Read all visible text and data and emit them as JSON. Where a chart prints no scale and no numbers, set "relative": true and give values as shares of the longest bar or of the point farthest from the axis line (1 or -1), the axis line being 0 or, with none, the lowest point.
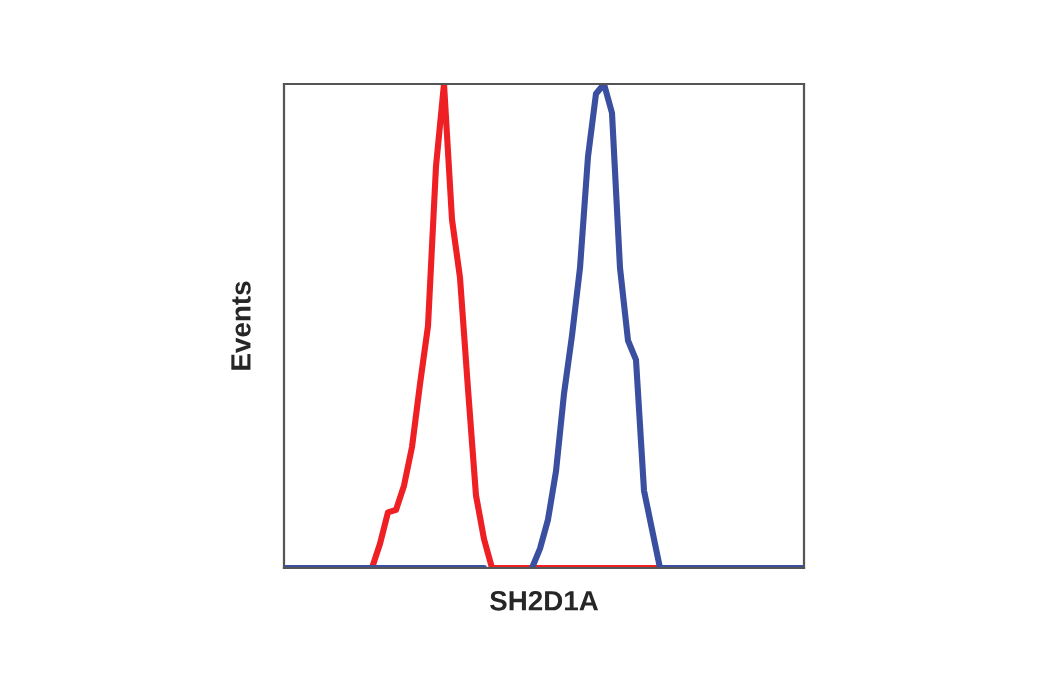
{
  "chart_data": {
    "type": "line",
    "relative": true,
    "xlabel": "SH2D1A",
    "ylabel": "Events",
    "legend": false,
    "marker": "none",
    "line_style": "solid",
    "categories": [
      null,
      null,
      null,
      null,
      null,
      null,
      null,
      null,
      null,
      null,
      null,
      null,
      null,
      null,
      null,
      null,
      null,
      null,
      null,
      null,
      null,
      null,
      null,
      null,
      null,
      null,
      null,
      null,
      null,
      null,
      null,
      null,
      null,
      null,
      null,
      null,
      null,
      null,
      null,
      null,
      null,
      null,
      null,
      null,
      null,
      null,
      null,
      null,
      null,
      null,
      null,
      null,
      null,
      null,
      null,
      null,
      null,
      null,
      null,
      null,
      null,
      null,
      null,
      null,
      null,
      null
    ],
    "series": [
      {
        "color": "#ee2024",
        "values": [
          null,
          null,
          null,
          null,
          null,
          null,
          null,
          null,
          null,
          null,
          null,
          0,
          0.05,
          0.115,
          0.12,
          0.17,
          0.25,
          0.38,
          0.5,
          0.83,
          1.0,
          0.72,
          0.6,
          0.37,
          0.15,
          0.06,
          0,
          0,
          0,
          0,
          0,
          0,
          0,
          0,
          0,
          0,
          0,
          0,
          0,
          0,
          0,
          0,
          0,
          0,
          0,
          0,
          0,
          0,
          null,
          null,
          null,
          null,
          null,
          null,
          null,
          null,
          null,
          null,
          null,
          null,
          null,
          null,
          null,
          null,
          null,
          null
        ]
      },
      {
        "color": "#3a4fa0",
        "values": [
          0,
          0,
          0,
          0,
          0,
          0,
          0,
          0,
          0,
          0,
          0,
          0,
          0,
          0,
          0,
          0,
          0,
          0,
          0,
          0,
          0,
          0,
          0,
          0,
          0,
          0,
          null,
          null,
          null,
          null,
          null,
          0,
          0.04,
          0.1,
          0.2,
          0.36,
          0.48,
          0.62,
          0.85,
          0.98,
          1.0,
          0.94,
          0.62,
          0.47,
          0.43,
          0.16,
          0.08,
          0,
          0,
          0,
          0,
          0,
          0,
          0,
          0,
          0,
          0,
          0,
          0,
          0,
          0,
          0,
          0,
          0,
          0,
          0
        ]
      }
    ]
  }
}
